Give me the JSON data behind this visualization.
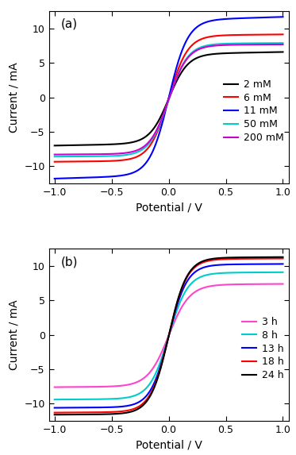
{
  "panel_a": {
    "label": "(a)",
    "curves": [
      {
        "label": "2 mM",
        "color": "#000000",
        "i_low": -6.7,
        "i_high": 6.3,
        "midpoint": 0.0,
        "steepness": 12.0,
        "slope": 0.3
      },
      {
        "label": "6 mM",
        "color": "#ff0000",
        "i_low": -9.2,
        "i_high": 9.0,
        "midpoint": 0.0,
        "steepness": 12.0,
        "slope": 0.15
      },
      {
        "label": "11 mM",
        "color": "#0000ff",
        "i_low": -11.3,
        "i_high": 11.2,
        "midpoint": 0.0,
        "steepness": 12.0,
        "slope": 0.5
      },
      {
        "label": "50 mM",
        "color": "#00cccc",
        "i_low": -8.5,
        "i_high": 7.8,
        "midpoint": 0.0,
        "steepness": 12.0,
        "slope": 0.1
      },
      {
        "label": "200 mM",
        "color": "#cc00cc",
        "i_low": -8.2,
        "i_high": 7.6,
        "midpoint": 0.0,
        "steepness": 12.0,
        "slope": 0.1
      }
    ],
    "xlim": [
      -1.05,
      1.05
    ],
    "ylim": [
      -12.5,
      12.5
    ],
    "yticks": [
      -10,
      -5,
      0,
      5,
      10
    ],
    "xticks": [
      -1.0,
      -0.5,
      0.0,
      0.5,
      1.0
    ],
    "xlabel": "Potential / V",
    "ylabel": "Current / mA"
  },
  "panel_b": {
    "label": "(b)",
    "curves": [
      {
        "label": "3 h",
        "color": "#ff44cc",
        "i_low": -7.5,
        "i_high": 7.3,
        "midpoint": 0.0,
        "steepness": 11.0,
        "slope": 0.1
      },
      {
        "label": "8 h",
        "color": "#00cccc",
        "i_low": -9.3,
        "i_high": 9.0,
        "midpoint": 0.0,
        "steepness": 12.0,
        "slope": 0.1
      },
      {
        "label": "13 h",
        "color": "#0000ff",
        "i_low": -10.5,
        "i_high": 10.2,
        "midpoint": 0.0,
        "steepness": 12.5,
        "slope": 0.1
      },
      {
        "label": "18 h",
        "color": "#ff0000",
        "i_low": -11.2,
        "i_high": 11.0,
        "midpoint": 0.0,
        "steepness": 12.5,
        "slope": 0.1
      },
      {
        "label": "24 h",
        "color": "#000000",
        "i_low": -11.5,
        "i_high": 11.2,
        "midpoint": 0.0,
        "steepness": 12.5,
        "slope": 0.1
      }
    ],
    "xlim": [
      -1.05,
      1.05
    ],
    "ylim": [
      -12.5,
      12.5
    ],
    "yticks": [
      -10,
      -5,
      0,
      5,
      10
    ],
    "xticks": [
      -1.0,
      -0.5,
      0.0,
      0.5,
      1.0
    ],
    "xlabel": "Potential / V",
    "ylabel": "Current / mA"
  },
  "figure_bg": "#ffffff",
  "linewidth": 1.5,
  "fontsize_label": 10,
  "fontsize_tick": 9,
  "fontsize_legend": 9,
  "fontsize_panel_label": 11
}
